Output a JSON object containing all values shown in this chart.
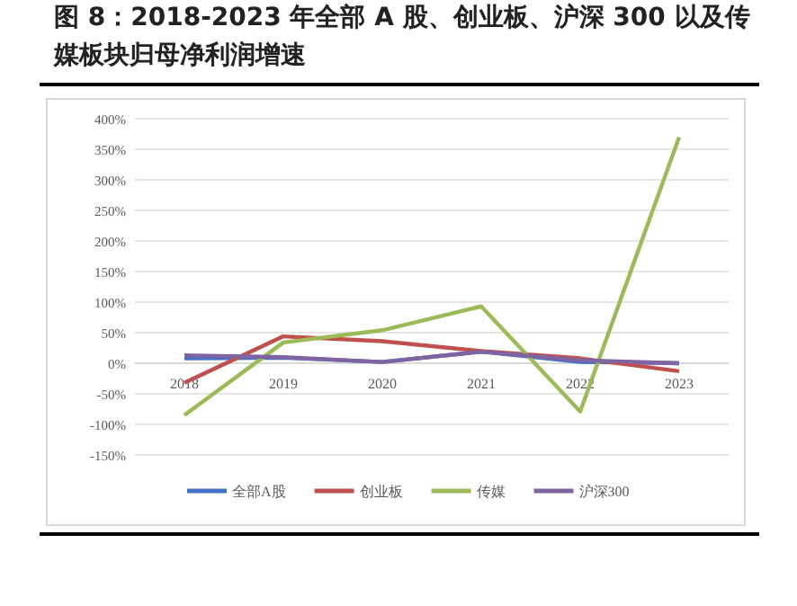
{
  "chart_data": {
    "type": "line",
    "title": "图 8：2018-2023 年全部 A 股、创业板、沪深 300 以及传媒板块归母净利润增速",
    "categories": [
      "2018",
      "2019",
      "2020",
      "2021",
      "2022",
      "2023"
    ],
    "series": [
      {
        "name": "全部A股",
        "color": "#4472c4",
        "values": [
          8,
          9,
          2,
          19,
          2,
          0
        ]
      },
      {
        "name": "创业板",
        "color": "#c0504d",
        "values": [
          -32,
          44,
          36,
          20,
          8,
          -13
        ]
      },
      {
        "name": "传媒",
        "color": "#9bbb59",
        "values": [
          -85,
          34,
          54,
          93,
          -79,
          370
        ]
      },
      {
        "name": "沪深300",
        "color": "#8064a2",
        "values": [
          13,
          10,
          2,
          19,
          5,
          0
        ]
      }
    ],
    "ylim": [
      -150,
      400
    ],
    "yticks": [
      {
        "value": -150,
        "label": "-150%"
      },
      {
        "value": -100,
        "label": "-100%"
      },
      {
        "value": -50,
        "label": "-50%"
      },
      {
        "value": 0,
        "label": "0%"
      },
      {
        "value": 50,
        "label": "50%"
      },
      {
        "value": 100,
        "label": "100%"
      },
      {
        "value": 150,
        "label": "150%"
      },
      {
        "value": 200,
        "label": "200%"
      },
      {
        "value": 250,
        "label": "250%"
      },
      {
        "value": 300,
        "label": "300%"
      },
      {
        "value": 350,
        "label": "350%"
      },
      {
        "value": 400,
        "label": "400%"
      }
    ],
    "grid": "y",
    "legend": "bottom",
    "marker": "none",
    "line_style": "solid"
  }
}
